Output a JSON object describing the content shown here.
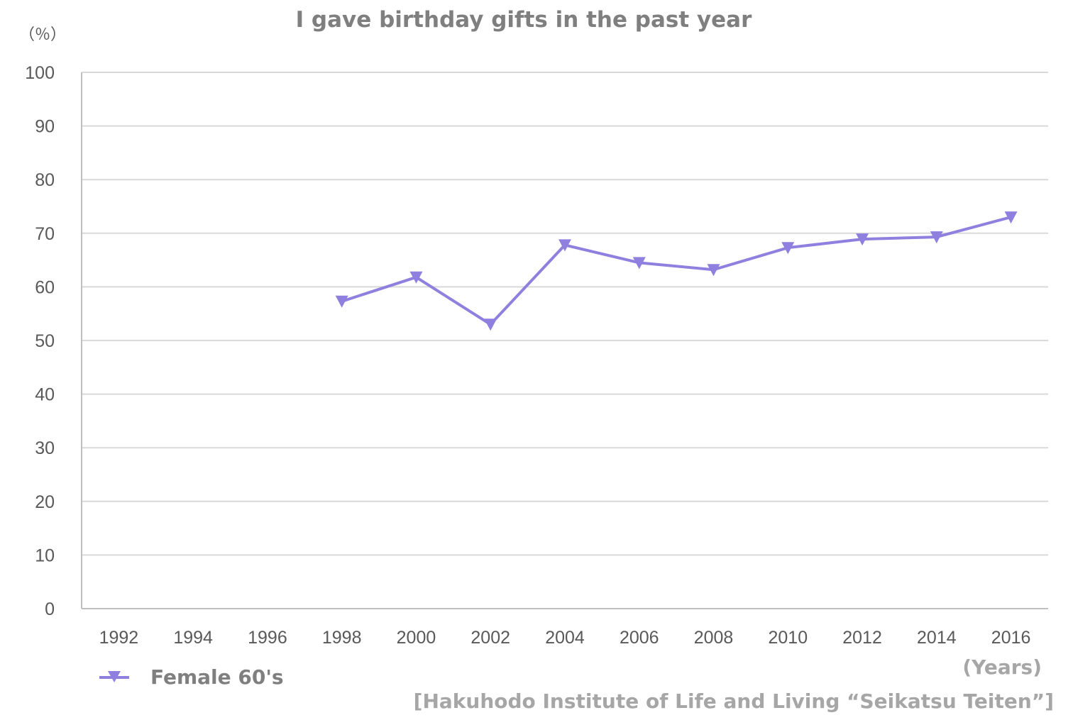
{
  "chart_data": {
    "type": "line",
    "title": "I gave birthday gifts in the past year",
    "ylabel": "（％）",
    "xlabel": "(Years)",
    "source": "[Hakuhodo Institute of Life and Living “Seikatsu Teiten”]",
    "ylim": [
      0,
      100
    ],
    "ytick_step": 10,
    "y_ticks": [
      "0",
      "10",
      "20",
      "30",
      "40",
      "50",
      "60",
      "70",
      "80",
      "90",
      "100"
    ],
    "categories": [
      "1992",
      "1994",
      "1996",
      "1998",
      "2000",
      "2002",
      "2004",
      "2006",
      "2008",
      "2010",
      "2012",
      "2014",
      "2016"
    ],
    "grid": true,
    "legend_position": "bottom-left",
    "series": [
      {
        "name": "Female 60's",
        "color": "#8f80e0",
        "marker": "triangle-down",
        "values": [
          null,
          null,
          null,
          57.3,
          61.8,
          53.0,
          67.8,
          64.5,
          63.2,
          67.3,
          68.9,
          69.3,
          73.0
        ]
      }
    ]
  }
}
